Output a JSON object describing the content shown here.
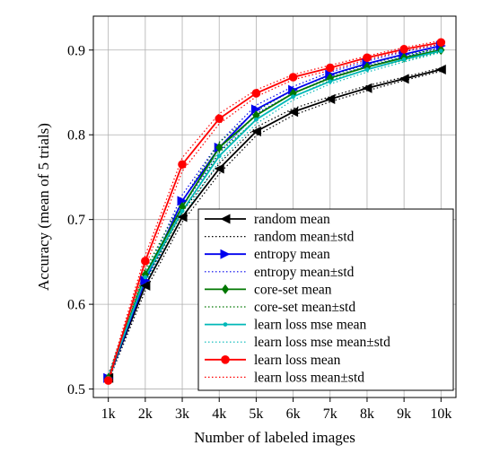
{
  "chart_data": {
    "type": "line",
    "title": "",
    "xlabel": "Number of labeled images",
    "ylabel": "Accuracy (mean of 5 trials)",
    "categories": [
      "1k",
      "2k",
      "3k",
      "4k",
      "5k",
      "6k",
      "7k",
      "8k",
      "9k",
      "10k"
    ],
    "x": [
      1000,
      2000,
      3000,
      4000,
      5000,
      6000,
      7000,
      8000,
      9000,
      10000
    ],
    "ylim": [
      0.49,
      0.94
    ],
    "yticks": [
      0.5,
      0.6,
      0.7,
      0.8,
      0.9
    ],
    "ytick_labels": [
      "0.5",
      "0.6",
      "0.7",
      "0.8",
      "0.9"
    ],
    "grid": true,
    "legend_position": "lower-right",
    "series": [
      {
        "name": "random mean",
        "band_name": "random mean±std",
        "color": "#000000",
        "marker": "triangle-left",
        "values": [
          0.513,
          0.622,
          0.703,
          0.76,
          0.804,
          0.827,
          0.842,
          0.855,
          0.866,
          0.877
        ],
        "std": [
          0.004,
          0.006,
          0.006,
          0.006,
          0.005,
          0.004,
          0.003,
          0.003,
          0.002,
          0.002
        ]
      },
      {
        "name": "entropy mean",
        "band_name": "entropy mean±std",
        "color": "#0000ee",
        "marker": "triangle-right",
        "values": [
          0.513,
          0.628,
          0.722,
          0.785,
          0.83,
          0.853,
          0.871,
          0.884,
          0.895,
          0.905
        ],
        "std": [
          0.004,
          0.006,
          0.007,
          0.006,
          0.005,
          0.004,
          0.003,
          0.003,
          0.003,
          0.002
        ]
      },
      {
        "name": "core-set mean",
        "band_name": "core-set mean±std",
        "color": "#007700",
        "marker": "diamond",
        "values": [
          0.513,
          0.635,
          0.715,
          0.785,
          0.823,
          0.849,
          0.867,
          0.88,
          0.891,
          0.9
        ],
        "std": [
          0.004,
          0.006,
          0.007,
          0.006,
          0.005,
          0.004,
          0.003,
          0.003,
          0.003,
          0.002
        ]
      },
      {
        "name": "learn loss mse mean",
        "band_name": "learn loss mse mean±std",
        "color": "#00b8b8",
        "marker": "point",
        "values": [
          0.513,
          0.632,
          0.71,
          0.775,
          0.818,
          0.845,
          0.863,
          0.877,
          0.889,
          0.899
        ],
        "std": [
          0.004,
          0.006,
          0.007,
          0.006,
          0.005,
          0.004,
          0.003,
          0.003,
          0.003,
          0.002
        ]
      },
      {
        "name": "learn loss mean",
        "band_name": "learn loss mean±std",
        "color": "#ff0000",
        "marker": "circle",
        "values": [
          0.51,
          0.651,
          0.765,
          0.819,
          0.849,
          0.868,
          0.879,
          0.891,
          0.901,
          0.909
        ],
        "std": [
          0.004,
          0.007,
          0.008,
          0.006,
          0.004,
          0.003,
          0.003,
          0.002,
          0.002,
          0.002
        ]
      }
    ]
  }
}
